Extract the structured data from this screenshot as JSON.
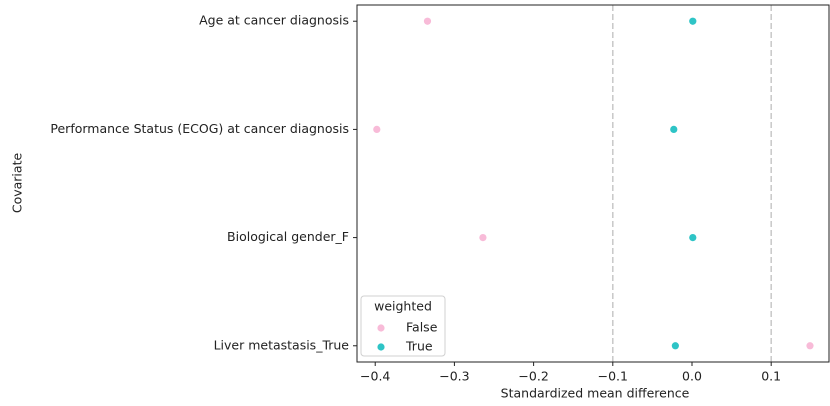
{
  "chart_data": {
    "type": "scatter",
    "categories": [
      "Age at cancer diagnosis",
      "Performance Status (ECOG) at cancer diagnosis",
      "Biological gender_F",
      "Liver metastasis_True"
    ],
    "series": [
      {
        "name": "False",
        "color": "#f8bbd8",
        "values": [
          -0.334,
          -0.398,
          -0.264,
          0.149
        ]
      },
      {
        "name": "True",
        "color": "#2ec4c6",
        "values": [
          0.001,
          -0.023,
          0.001,
          -0.021
        ]
      }
    ],
    "xlabel": "Standardized mean difference",
    "ylabel": "Covariate",
    "xlim": [
      -0.423,
      0.173
    ],
    "xticks": [
      {
        "value": -0.4,
        "label": "−0.4"
      },
      {
        "value": -0.3,
        "label": "−0.3"
      },
      {
        "value": -0.2,
        "label": "−0.2"
      },
      {
        "value": -0.1,
        "label": "−0.1"
      },
      {
        "value": 0,
        "label": "0.0"
      },
      0.1
    ],
    "reference_lines": [
      -0.1,
      0.1
    ],
    "legend": {
      "title": "weighted",
      "loc": "lower left"
    }
  }
}
